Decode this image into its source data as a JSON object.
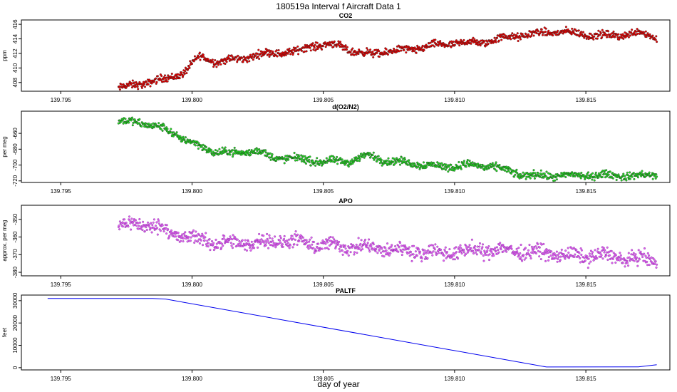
{
  "figure": {
    "title": "180519a   Interval f Aircraft Data 1",
    "xlabel": "day of year"
  },
  "chart_data": [
    {
      "type": "scatter",
      "title": "CO2",
      "xlabel": "day of year",
      "ylabel": "ppm",
      "xlim": [
        139.7935,
        139.8182
      ],
      "ylim": [
        406.8,
        416.6
      ],
      "xticks": [
        "139.795",
        "139.800",
        "139.805",
        "139.810",
        "139.815"
      ],
      "yticks": [
        "408",
        "410",
        "412",
        "414",
        "416"
      ],
      "colors": {
        "points": "#ee0000",
        "edge": "#222222"
      },
      "x_range": [
        139.7972,
        139.8177
      ],
      "trend": [
        {
          "x": 139.7972,
          "y": 407.2
        },
        {
          "x": 139.798,
          "y": 407.8
        },
        {
          "x": 139.799,
          "y": 408.5
        },
        {
          "x": 139.7997,
          "y": 409.4
        },
        {
          "x": 139.8003,
          "y": 411.6
        },
        {
          "x": 139.801,
          "y": 410.8
        },
        {
          "x": 139.802,
          "y": 411.4
        },
        {
          "x": 139.803,
          "y": 412.1
        },
        {
          "x": 139.804,
          "y": 412.2
        },
        {
          "x": 139.8045,
          "y": 413.1
        },
        {
          "x": 139.8055,
          "y": 413.2
        },
        {
          "x": 139.8062,
          "y": 412.2
        },
        {
          "x": 139.8068,
          "y": 411.9
        },
        {
          "x": 139.8075,
          "y": 412.3
        },
        {
          "x": 139.8085,
          "y": 412.6
        },
        {
          "x": 139.809,
          "y": 413.0
        },
        {
          "x": 139.81,
          "y": 413.4
        },
        {
          "x": 139.811,
          "y": 413.5
        },
        {
          "x": 139.812,
          "y": 414.2
        },
        {
          "x": 139.813,
          "y": 414.7
        },
        {
          "x": 139.814,
          "y": 415.0
        },
        {
          "x": 139.815,
          "y": 414.6
        },
        {
          "x": 139.816,
          "y": 414.4
        },
        {
          "x": 139.817,
          "y": 414.9
        },
        {
          "x": 139.8177,
          "y": 414.2
        }
      ]
    },
    {
      "type": "scatter",
      "title": "d(O2/N2)",
      "xlabel": "day of year",
      "ylabel": "per meg",
      "xlim": [
        139.7935,
        139.8182
      ],
      "ylim": [
        -722,
        -632
      ],
      "xticks": [
        "139.795",
        "139.800",
        "139.805",
        "139.810",
        "139.815"
      ],
      "yticks": [
        "-660",
        "-680",
        "-700",
        "-720"
      ],
      "colors": {
        "points": "#22dd22",
        "edge": "#222222"
      },
      "x_range": [
        139.7972,
        139.8177
      ],
      "trend": [
        {
          "x": 139.7972,
          "y": -645
        },
        {
          "x": 139.798,
          "y": -646
        },
        {
          "x": 139.799,
          "y": -655
        },
        {
          "x": 139.8,
          "y": -672
        },
        {
          "x": 139.8008,
          "y": -683
        },
        {
          "x": 139.8015,
          "y": -685
        },
        {
          "x": 139.8025,
          "y": -682
        },
        {
          "x": 139.803,
          "y": -690
        },
        {
          "x": 139.804,
          "y": -692
        },
        {
          "x": 139.805,
          "y": -696
        },
        {
          "x": 139.806,
          "y": -695
        },
        {
          "x": 139.8067,
          "y": -688
        },
        {
          "x": 139.8075,
          "y": -695
        },
        {
          "x": 139.8085,
          "y": -698
        },
        {
          "x": 139.8095,
          "y": -702
        },
        {
          "x": 139.8105,
          "y": -700
        },
        {
          "x": 139.8115,
          "y": -702
        },
        {
          "x": 139.8125,
          "y": -712
        },
        {
          "x": 139.8135,
          "y": -714
        },
        {
          "x": 139.8145,
          "y": -713
        },
        {
          "x": 139.816,
          "y": -713
        },
        {
          "x": 139.817,
          "y": -714
        },
        {
          "x": 139.8177,
          "y": -712
        }
      ]
    },
    {
      "type": "scatter",
      "title": "APO",
      "xlabel": "day of year",
      "ylabel": "approx. per meg",
      "xlim": [
        139.7935,
        139.8182
      ],
      "ylim": [
        -382,
        -342
      ],
      "xticks": [
        "139.795",
        "139.800",
        "139.805",
        "139.810",
        "139.815"
      ],
      "yticks": [
        "-350",
        "-360",
        "-370",
        "-380"
      ],
      "colors": {
        "points": "#e060ee",
        "edge": "#7a2a9a"
      },
      "x_range": [
        139.7972,
        139.8177
      ],
      "trend": [
        {
          "x": 139.7972,
          "y": -354
        },
        {
          "x": 139.798,
          "y": -352
        },
        {
          "x": 139.799,
          "y": -356
        },
        {
          "x": 139.7997,
          "y": -360
        },
        {
          "x": 139.8005,
          "y": -362
        },
        {
          "x": 139.8015,
          "y": -364
        },
        {
          "x": 139.8025,
          "y": -363
        },
        {
          "x": 139.8035,
          "y": -362
        },
        {
          "x": 139.8045,
          "y": -364
        },
        {
          "x": 139.8055,
          "y": -365
        },
        {
          "x": 139.8065,
          "y": -366
        },
        {
          "x": 139.8075,
          "y": -367
        },
        {
          "x": 139.8085,
          "y": -368
        },
        {
          "x": 139.8095,
          "y": -369
        },
        {
          "x": 139.8105,
          "y": -368
        },
        {
          "x": 139.8115,
          "y": -367
        },
        {
          "x": 139.8125,
          "y": -368
        },
        {
          "x": 139.8135,
          "y": -369
        },
        {
          "x": 139.8145,
          "y": -371
        },
        {
          "x": 139.8155,
          "y": -370
        },
        {
          "x": 139.8165,
          "y": -372
        },
        {
          "x": 139.8177,
          "y": -373
        }
      ]
    },
    {
      "type": "line",
      "title": "PALTF",
      "xlabel": "day of year",
      "ylabel": "feet",
      "xlim": [
        139.7935,
        139.8182
      ],
      "ylim": [
        -1000,
        32500
      ],
      "xticks": [
        "139.795",
        "139.800",
        "139.805",
        "139.810",
        "139.815"
      ],
      "yticks": [
        "0",
        "10000",
        "20000",
        "30000"
      ],
      "colors": {
        "line": "#0000ee"
      },
      "x": [
        139.7945,
        139.7985,
        139.799,
        139.8135,
        139.817,
        139.8177
      ],
      "y": [
        31000,
        31000,
        30700,
        300,
        350,
        1300
      ]
    }
  ]
}
